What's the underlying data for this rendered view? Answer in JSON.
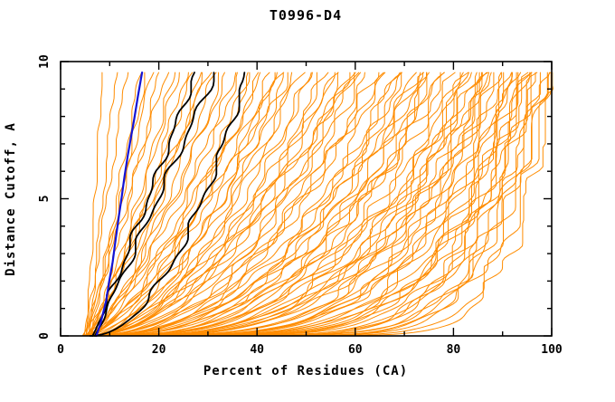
{
  "chart_data": {
    "type": "line",
    "title": "T0996-D4",
    "xlabel": "Percent of Residues (CA)",
    "ylabel": "Distance Cutoff, A",
    "xlim": [
      0,
      100
    ],
    "ylim": [
      0,
      10
    ],
    "grid": false,
    "legend": "none",
    "frame": "full-box-with-inside-mirrored-ticks",
    "x_major_ticks": [
      0,
      20,
      40,
      60,
      80,
      100
    ],
    "x_major_tick_labels": [
      "0",
      "20",
      "40",
      "60",
      "80",
      "100"
    ],
    "x_minor_ticks": [
      10,
      30,
      50,
      70,
      90
    ],
    "y_major_ticks": [
      0,
      5,
      10
    ],
    "y_major_tick_labels": [
      "0",
      "5",
      "10"
    ],
    "y_tick_labels_rotated": true,
    "y_minor_ticks": [
      1,
      2,
      3,
      4,
      6,
      7,
      8,
      9
    ],
    "curve_top_y": 9.6,
    "colors": {
      "model_curves": "#ff8c00",
      "highlighted_curves": "#000000",
      "reference_curve": "#1414d6",
      "axis": "#000000",
      "background": "#ffffff"
    },
    "groups": [
      {
        "name": "model-curves",
        "color": "#ff8c00",
        "stroke_width": 1,
        "curve_format": [
          "x_percent_at_cutoff0",
          "x_percent_at_cutoff9.6",
          "shape_exponent",
          "seed"
        ],
        "curves": [
          [
            5.2,
            8.5,
            1.0,
            1
          ],
          [
            5.8,
            11.2,
            1.05,
            2
          ],
          [
            4.8,
            13.5,
            0.95,
            3
          ],
          [
            6.2,
            16.2,
            1.0,
            4
          ],
          [
            5.5,
            17.5,
            0.9,
            5
          ],
          [
            5.0,
            18.5,
            0.9,
            6
          ],
          [
            6.1,
            20.0,
            0.85,
            7
          ],
          [
            4.6,
            21.5,
            0.95,
            8
          ],
          [
            5.4,
            23.0,
            0.8,
            9
          ],
          [
            6.6,
            24.0,
            0.9,
            10
          ],
          [
            4.9,
            25.5,
            0.75,
            11
          ],
          [
            5.7,
            27.0,
            0.85,
            12
          ],
          [
            6.3,
            28.5,
            0.7,
            13
          ],
          [
            5.1,
            29.5,
            0.8,
            14
          ],
          [
            4.4,
            30.0,
            0.9,
            15
          ],
          [
            5.9,
            31.5,
            0.75,
            16
          ],
          [
            4.7,
            33.0,
            0.65,
            17
          ],
          [
            6.0,
            34.0,
            0.8,
            18
          ],
          [
            5.3,
            35.5,
            0.6,
            19
          ],
          [
            4.5,
            36.5,
            0.72,
            20
          ],
          [
            6.4,
            38.0,
            0.55,
            21
          ],
          [
            5.6,
            39.0,
            0.68,
            22
          ],
          [
            4.8,
            40.5,
            0.6,
            23
          ],
          [
            5.2,
            41.5,
            0.75,
            24
          ],
          [
            6.1,
            42.5,
            0.5,
            25
          ],
          [
            4.6,
            43.5,
            0.65,
            26
          ],
          [
            5.8,
            44.5,
            0.55,
            27
          ],
          [
            5.0,
            45.0,
            0.7,
            28
          ],
          [
            6.5,
            45.5,
            0.48,
            29
          ],
          [
            4.9,
            46.5,
            0.6,
            30
          ],
          [
            5.5,
            48.0,
            0.5,
            31
          ],
          [
            6.2,
            49.0,
            0.65,
            32
          ],
          [
            4.7,
            50.5,
            0.45,
            33
          ],
          [
            5.9,
            51.5,
            0.58,
            34
          ],
          [
            5.1,
            53.0,
            0.42,
            35
          ],
          [
            6.6,
            54.0,
            0.55,
            36
          ],
          [
            4.5,
            55.5,
            0.48,
            37
          ],
          [
            5.4,
            56.5,
            0.6,
            38
          ],
          [
            6.0,
            57.5,
            0.4,
            39
          ],
          [
            4.8,
            58.5,
            0.52,
            40
          ],
          [
            5.6,
            59.0,
            0.45,
            41
          ],
          [
            5.2,
            59.5,
            0.58,
            42
          ],
          [
            6.3,
            60.0,
            0.38,
            43
          ],
          [
            4.6,
            61.5,
            0.5,
            44
          ],
          [
            5.8,
            62.5,
            0.4,
            45
          ],
          [
            5.0,
            64.0,
            0.45,
            46
          ],
          [
            6.1,
            65.0,
            0.35,
            47
          ],
          [
            4.9,
            66.0,
            0.48,
            48
          ],
          [
            5.5,
            67.5,
            0.32,
            49
          ],
          [
            6.4,
            68.5,
            0.42,
            50
          ],
          [
            4.7,
            69.5,
            0.36,
            51
          ],
          [
            5.3,
            70.5,
            0.45,
            52
          ],
          [
            5.9,
            71.5,
            0.3,
            53
          ],
          [
            4.5,
            72.5,
            0.4,
            54
          ],
          [
            6.2,
            73.0,
            0.34,
            55
          ],
          [
            5.1,
            74.0,
            0.44,
            56
          ],
          [
            5.7,
            74.5,
            0.28,
            57
          ],
          [
            4.8,
            75.0,
            0.38,
            58
          ],
          [
            6.0,
            75.5,
            0.32,
            59
          ],
          [
            5.4,
            76.5,
            0.35,
            60
          ],
          [
            4.6,
            77.5,
            0.28,
            61
          ],
          [
            5.8,
            78.5,
            0.4,
            62
          ],
          [
            5.0,
            79.5,
            0.25,
            63
          ],
          [
            6.3,
            80.5,
            0.33,
            64
          ],
          [
            4.8,
            81.5,
            0.22,
            65
          ],
          [
            5.5,
            82.0,
            0.3,
            66
          ],
          [
            6.1,
            82.5,
            0.26,
            67
          ],
          [
            4.5,
            83.5,
            0.35,
            68
          ],
          [
            5.2,
            84.0,
            0.2,
            69
          ],
          [
            5.9,
            84.5,
            0.3,
            70
          ],
          [
            4.7,
            85.5,
            0.24,
            71
          ],
          [
            6.4,
            86.0,
            0.32,
            72
          ],
          [
            5.1,
            86.5,
            0.2,
            73
          ],
          [
            5.6,
            87.0,
            0.28,
            74
          ],
          [
            4.9,
            87.5,
            0.22,
            75
          ],
          [
            6.0,
            88.0,
            0.3,
            76
          ],
          [
            5.3,
            88.0,
            0.18,
            77
          ],
          [
            4.6,
            89.0,
            0.25,
            78
          ],
          [
            5.7,
            89.5,
            0.15,
            79
          ],
          [
            5.0,
            90.0,
            0.22,
            80
          ],
          [
            6.2,
            90.5,
            0.12,
            81
          ],
          [
            4.8,
            91.0,
            0.2,
            82
          ],
          [
            5.4,
            91.5,
            0.16,
            83
          ],
          [
            5.9,
            92.0,
            0.24,
            84
          ],
          [
            4.5,
            92.5,
            0.12,
            85
          ],
          [
            5.2,
            93.0,
            0.18,
            86
          ],
          [
            6.0,
            93.5,
            0.1,
            87
          ],
          [
            4.9,
            94.0,
            0.2,
            88
          ],
          [
            5.5,
            94.5,
            0.14,
            89
          ],
          [
            6.3,
            95.0,
            0.18,
            90
          ],
          [
            4.7,
            95.5,
            0.1,
            91
          ],
          [
            5.1,
            96.0,
            0.16,
            92
          ],
          [
            5.8,
            96.5,
            0.12,
            93
          ],
          [
            5.3,
            97.0,
            0.2,
            94
          ],
          [
            4.6,
            97.5,
            0.1,
            95
          ],
          [
            6.1,
            98.0,
            0.15,
            96
          ],
          [
            4.8,
            98.5,
            0.09,
            97
          ],
          [
            5.6,
            99.0,
            0.13,
            98
          ],
          [
            5.0,
            99.5,
            0.08,
            99
          ]
        ]
      },
      {
        "name": "highlighted-model-curves",
        "color": "#000000",
        "stroke_width": 1.8,
        "curve_format": [
          "x_percent_at_cutoff0",
          "x_percent_at_cutoff9.6",
          "shape_exponent",
          "seed"
        ],
        "curves": [
          [
            6.5,
            27.5,
            0.95,
            101
          ],
          [
            7.0,
            31.5,
            1.0,
            102
          ],
          [
            6.0,
            37.8,
            0.5,
            103
          ]
        ]
      },
      {
        "name": "reference-curve",
        "color": "#1414d6",
        "stroke_width": 2.2,
        "points": [
          [
            7.3,
            0.0
          ],
          [
            8.2,
            0.5
          ],
          [
            9.3,
            1.3
          ],
          [
            9.9,
            2.0
          ],
          [
            10.6,
            2.7
          ],
          [
            11.2,
            3.5
          ],
          [
            11.9,
            4.4
          ],
          [
            12.4,
            5.0
          ],
          [
            13.0,
            5.8
          ],
          [
            13.7,
            6.6
          ],
          [
            14.3,
            7.2
          ],
          [
            15.0,
            7.9
          ],
          [
            15.7,
            8.7
          ],
          [
            16.3,
            9.3
          ],
          [
            16.6,
            9.6
          ]
        ]
      }
    ]
  }
}
